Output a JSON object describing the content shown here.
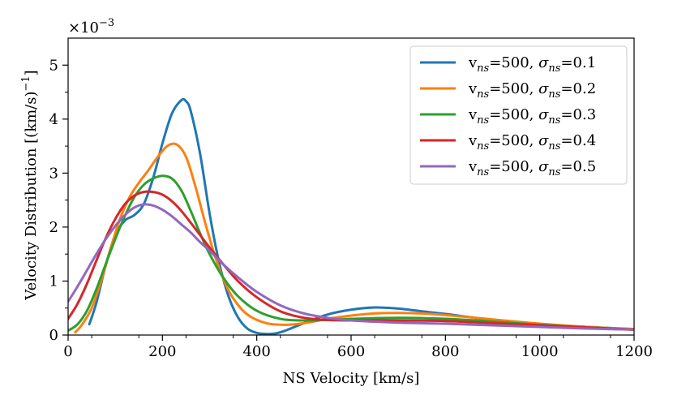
{
  "chart_data": {
    "type": "line",
    "xlabel": "NS Velocity [km/s]",
    "ylabel": "Velocity Distribution [(km/s)",
    "ylabel_sup": "−1",
    "ylabel_close": "]",
    "offset_text": "×10",
    "offset_sup": "−3",
    "xlim": [
      0,
      1200
    ],
    "ylim": [
      0,
      5.5
    ],
    "xticks": [
      0,
      200,
      400,
      600,
      800,
      1000,
      1200
    ],
    "xtick_labels": [
      "0",
      "200",
      "400",
      "600",
      "800",
      "1000",
      "1200"
    ],
    "yticks": [
      0,
      1,
      2,
      3,
      4,
      5
    ],
    "ytick_labels": [
      "0",
      "1",
      "2",
      "3",
      "4",
      "5"
    ],
    "grid": false,
    "legend_position": "top-right",
    "series": [
      {
        "name": "v_ns=500, σ_ns=0.1",
        "label": {
          "v": "v",
          "v_sub": "ns",
          "mid": "=500, ",
          "s": "σ",
          "s_sub": "ns",
          "val": "=0.1"
        },
        "color": "#1f77b4",
        "x": [
          45,
          60,
          80,
          100,
          120,
          140,
          160,
          180,
          200,
          220,
          240,
          250,
          260,
          280,
          300,
          320,
          340,
          360,
          380,
          400,
          420,
          440,
          460,
          500,
          550,
          600,
          650,
          700,
          750,
          800,
          900,
          1000,
          1100,
          1200
        ],
        "y": [
          0.2,
          0.6,
          1.3,
          1.85,
          2.12,
          2.22,
          2.42,
          2.9,
          3.55,
          4.1,
          4.35,
          4.33,
          4.15,
          3.35,
          2.25,
          1.35,
          0.72,
          0.33,
          0.12,
          0.04,
          0.02,
          0.03,
          0.08,
          0.22,
          0.38,
          0.47,
          0.51,
          0.49,
          0.44,
          0.39,
          0.28,
          0.2,
          0.15,
          0.11
        ]
      },
      {
        "name": "v_ns=500, σ_ns=0.2",
        "label": {
          "v": "v",
          "v_sub": "ns",
          "mid": "=500, ",
          "s": "σ",
          "s_sub": "ns",
          "val": "=0.2"
        },
        "color": "#ff7f0e",
        "x": [
          15,
          30,
          50,
          70,
          90,
          110,
          130,
          150,
          170,
          190,
          210,
          230,
          250,
          270,
          290,
          310,
          330,
          350,
          380,
          420,
          460,
          500,
          550,
          600,
          650,
          700,
          750,
          800,
          900,
          1000,
          1100,
          1200
        ],
        "y": [
          0.05,
          0.2,
          0.5,
          1.0,
          1.6,
          2.15,
          2.55,
          2.82,
          3.05,
          3.3,
          3.5,
          3.53,
          3.3,
          2.75,
          2.1,
          1.5,
          1.02,
          0.68,
          0.38,
          0.22,
          0.19,
          0.22,
          0.3,
          0.36,
          0.4,
          0.41,
          0.4,
          0.37,
          0.29,
          0.21,
          0.15,
          0.11
        ]
      },
      {
        "name": "v_ns=500, σ_ns=0.3",
        "label": {
          "v": "v",
          "v_sub": "ns",
          "mid": "=500, ",
          "s": "σ",
          "s_sub": "ns",
          "val": "=0.3"
        },
        "color": "#2ca02c",
        "x": [
          0,
          20,
          40,
          60,
          80,
          100,
          120,
          140,
          160,
          180,
          200,
          220,
          240,
          260,
          280,
          300,
          330,
          360,
          400,
          450,
          500,
          550,
          600,
          700,
          800,
          900,
          1000,
          1100,
          1200
        ],
        "y": [
          0.08,
          0.2,
          0.45,
          0.85,
          1.32,
          1.78,
          2.2,
          2.55,
          2.78,
          2.9,
          2.95,
          2.9,
          2.68,
          2.3,
          1.88,
          1.5,
          1.05,
          0.72,
          0.45,
          0.3,
          0.27,
          0.28,
          0.3,
          0.32,
          0.3,
          0.25,
          0.19,
          0.14,
          0.1
        ]
      },
      {
        "name": "v_ns=500, σ_ns=0.4",
        "label": {
          "v": "v",
          "v_sub": "ns",
          "mid": "=500, ",
          "s": "σ",
          "s_sub": "ns",
          "val": "=0.4"
        },
        "color": "#d62728",
        "x": [
          0,
          20,
          40,
          60,
          80,
          100,
          120,
          140,
          160,
          180,
          200,
          220,
          240,
          260,
          280,
          300,
          330,
          360,
          400,
          450,
          500,
          550,
          600,
          700,
          800,
          900,
          1000,
          1100,
          1200
        ],
        "y": [
          0.3,
          0.58,
          0.95,
          1.38,
          1.8,
          2.15,
          2.42,
          2.58,
          2.65,
          2.65,
          2.6,
          2.48,
          2.3,
          2.08,
          1.85,
          1.62,
          1.3,
          1.0,
          0.7,
          0.44,
          0.32,
          0.28,
          0.27,
          0.27,
          0.26,
          0.22,
          0.18,
          0.14,
          0.1
        ]
      },
      {
        "name": "v_ns=500, σ_ns=0.5",
        "label": {
          "v": "v",
          "v_sub": "ns",
          "mid": "=500, ",
          "s": "σ",
          "s_sub": "ns",
          "val": "=0.5"
        },
        "color": "#9467bd",
        "x": [
          0,
          20,
          40,
          60,
          80,
          100,
          120,
          140,
          160,
          180,
          200,
          220,
          240,
          260,
          280,
          300,
          330,
          360,
          400,
          450,
          500,
          550,
          600,
          700,
          800,
          900,
          1000,
          1100,
          1200
        ],
        "y": [
          0.62,
          0.9,
          1.2,
          1.5,
          1.78,
          2.02,
          2.22,
          2.36,
          2.42,
          2.4,
          2.32,
          2.2,
          2.05,
          1.9,
          1.72,
          1.56,
          1.3,
          1.07,
          0.8,
          0.55,
          0.4,
          0.32,
          0.27,
          0.23,
          0.21,
          0.18,
          0.15,
          0.12,
          0.1
        ]
      }
    ]
  }
}
